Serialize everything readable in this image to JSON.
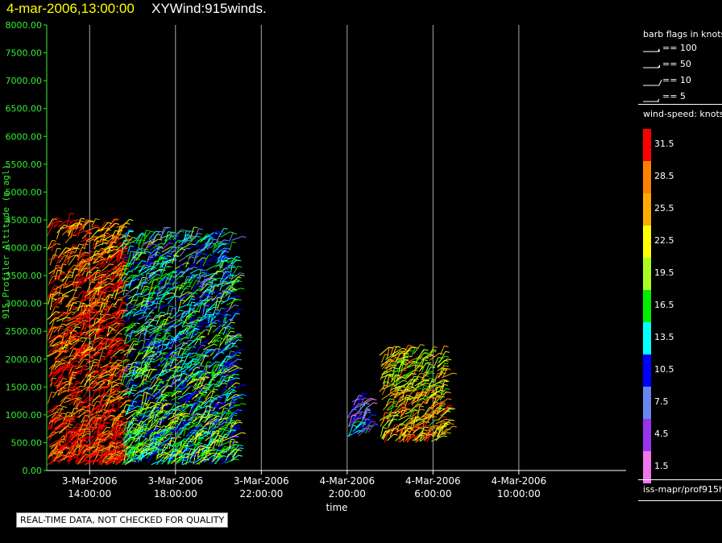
{
  "header": {
    "date_label": "4-mar-2006,13:00:00",
    "product_label": "XYWind:915winds."
  },
  "notice": "REAL-TIME DATA, NOT CHECKED FOR QUALITY",
  "legend": {
    "barb_title": "barb flags in knots",
    "barb_items": [
      "== 100",
      "== 50",
      "== 10",
      "== 5"
    ],
    "speed_title": "wind-speed: knots",
    "colorbar": [
      {
        "label": "31.5",
        "color": "#ff0000"
      },
      {
        "label": "28.5",
        "color": "#ff7f00"
      },
      {
        "label": "25.5",
        "color": "#ffaa00"
      },
      {
        "label": "22.5",
        "color": "#ffff00"
      },
      {
        "label": "19.5",
        "color": "#aaff22"
      },
      {
        "label": "16.5",
        "color": "#00ee00"
      },
      {
        "label": "13.5",
        "color": "#00ffff"
      },
      {
        "label": "10.5",
        "color": "#0000ff"
      },
      {
        "label": "7.5",
        "color": "#6688ee"
      },
      {
        "label": "4.5",
        "color": "#9933ee"
      },
      {
        "label": "1.5",
        "color": "#ee77ee"
      }
    ],
    "source": "iss-mapr/prof915h"
  },
  "chart_data": {
    "type": "scatter",
    "title": "4-mar-2006,13:00:00  XYWind:915winds.",
    "xlabel": "time",
    "ylabel": "915 Profiler Altitude (m agl)",
    "ylim": [
      0,
      8000
    ],
    "xlim": [
      "3-Mar-2006 12:00",
      "4-Mar-2006 15:00"
    ],
    "y_ticks": [
      "0.00",
      "500.00",
      "1000.00",
      "1500.00",
      "2000.00",
      "2500.00",
      "3000.00",
      "3500.00",
      "4000.00",
      "4500.00",
      "5000.00",
      "5500.00",
      "6000.00",
      "6500.00",
      "7000.00",
      "7500.00",
      "8000.00"
    ],
    "x_ticks": [
      {
        "date": "3-Mar-2006",
        "time": "14:00:00"
      },
      {
        "date": "3-Mar-2006",
        "time": "18:00:00"
      },
      {
        "date": "3-Mar-2006",
        "time": "22:00:00"
      },
      {
        "date": "4-Mar-2006",
        "time": "2:00:00"
      },
      {
        "date": "4-Mar-2006",
        "time": "6:00:00"
      },
      {
        "date": "4-Mar-2006",
        "time": "10:00:00"
      }
    ],
    "grid": "vertical",
    "series": [
      {
        "time_range": [
          "3-Mar-2006 12:00",
          "3-Mar-2006 15:30"
        ],
        "alt_range": [
          100,
          4400
        ],
        "dominant_speed_kt": 31.5
      },
      {
        "time_range": [
          "3-Mar-2006 15:30",
          "3-Mar-2006 20:40"
        ],
        "alt_range": [
          100,
          4200
        ],
        "dominant_speed_kt": 16.5
      },
      {
        "time_range": [
          "4-Mar-2006 2:00",
          "4-Mar-2006 3:00"
        ],
        "alt_range": [
          600,
          1300
        ],
        "dominant_speed_kt": 10.5
      },
      {
        "time_range": [
          "4-Mar-2006 3:30",
          "4-Mar-2006 6:30"
        ],
        "alt_range": [
          500,
          2100
        ],
        "dominant_speed_kt": 25.5
      }
    ]
  }
}
